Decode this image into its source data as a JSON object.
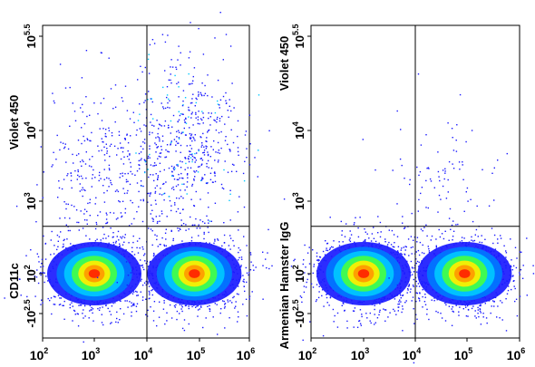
{
  "chart_data": [
    {
      "type": "scatter",
      "subtype": "flow-cytometry-density-plot",
      "xscale": "log",
      "yscale": "log",
      "xlim": [
        100,
        1000000
      ],
      "ylim": [
        -316,
        316228
      ],
      "x_tick_labels": [
        {
          "base": "10",
          "exp": "2"
        },
        {
          "base": "10",
          "exp": "3"
        },
        {
          "base": "10",
          "exp": "4"
        },
        {
          "base": "10",
          "exp": "5"
        },
        {
          "base": "10",
          "exp": "6"
        }
      ],
      "y_tick_labels": [
        {
          "base": "-10",
          "exp": "2.5"
        },
        {
          "base": "10",
          "exp": "2"
        },
        {
          "base": "10",
          "exp": "3"
        },
        {
          "base": "10",
          "exp": "4"
        },
        {
          "base": "10",
          "exp": "5.5"
        }
      ],
      "ylabel_top": "Violet 450",
      "ylabel_bottom": "CD11c",
      "gate_x": 10000,
      "gate_y": 450,
      "populations": [
        {
          "center_x": 1000,
          "center_y": 100,
          "relative_density": "high"
        },
        {
          "center_x": 80000,
          "center_y": 100,
          "relative_density": "high"
        },
        {
          "center_x": 1500,
          "center_y": 3000,
          "relative_density": "low",
          "note": "scattered events above gate"
        },
        {
          "center_x": 60000,
          "center_y": 6000,
          "relative_density": "medium",
          "note": "scattered events above gate"
        }
      ]
    },
    {
      "type": "scatter",
      "subtype": "flow-cytometry-density-plot",
      "xscale": "log",
      "yscale": "log",
      "xlim": [
        100,
        1000000
      ],
      "ylim": [
        -316,
        316228
      ],
      "x_tick_labels": [
        {
          "base": "10",
          "exp": "2"
        },
        {
          "base": "10",
          "exp": "3"
        },
        {
          "base": "10",
          "exp": "4"
        },
        {
          "base": "10",
          "exp": "5"
        },
        {
          "base": "10",
          "exp": "6"
        }
      ],
      "y_tick_labels": [
        {
          "base": "-10",
          "exp": "2.5"
        },
        {
          "base": "10",
          "exp": "2"
        },
        {
          "base": "10",
          "exp": "3"
        },
        {
          "base": "10",
          "exp": "4"
        },
        {
          "base": "10",
          "exp": "5.5"
        }
      ],
      "ylabel_top": "Violet 450",
      "ylabel_bottom": "Armenian Hamster IgG",
      "gate_x": 10000,
      "gate_y": 450,
      "populations": [
        {
          "center_x": 1000,
          "center_y": 100,
          "relative_density": "high"
        },
        {
          "center_x": 90000,
          "center_y": 100,
          "relative_density": "high"
        },
        {
          "center_x": 30000,
          "center_y": 1500,
          "relative_density": "very low",
          "note": "sparse events above gate"
        }
      ]
    }
  ],
  "colors": {
    "density_low": "#1a1aff",
    "density_mid_low": "#00c8ff",
    "density_mid": "#44ff44",
    "density_mid_high": "#ffee00",
    "density_high": "#ff2200",
    "gate_line": "#000000",
    "axis": "#000000"
  }
}
